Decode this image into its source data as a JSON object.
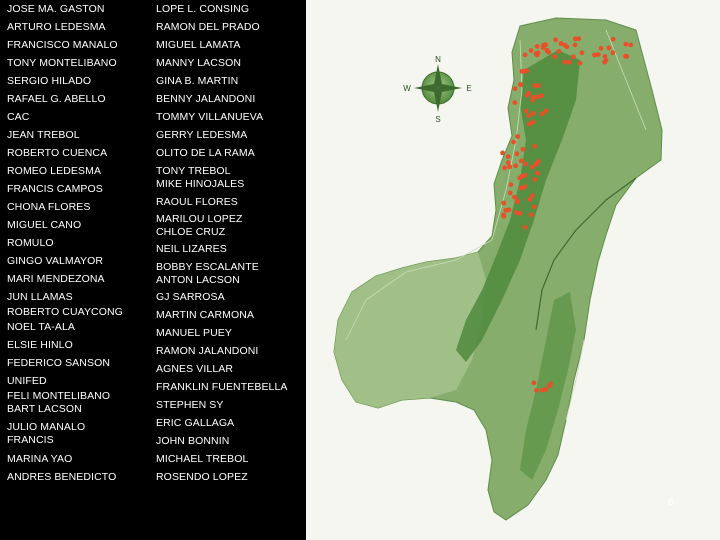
{
  "names_left": [
    "JOSE MA. GASTON",
    "ARTURO LEDESMA",
    "FRANCISCO MANALO",
    "TONY MONTELIBANO",
    "SERGIO HILADO",
    "RAFAEL G. ABELLO",
    "CAC",
    "JEAN TREBOL",
    "ROBERTO CUENCA",
    "ROMEO LEDESMA",
    "FRANCIS CAMPOS",
    "CHONA FLORES",
    "MIGUEL CANO",
    "ROMULO",
    "GINGO VALMAYOR",
    "MARI MENDEZONA",
    "JUN LLAMAS",
    "ROBERTO CUAYCONG",
    "NOEL TA-ALA",
    "ELSIE HINLO",
    "FEDERICO SANSON",
    "UNIFED",
    "FELI MONTELIBANO",
    "BART LACSON",
    "JULIO MANALO",
    "FRANCIS",
    "MARINA YAO",
    "ANDRES BENEDICTO"
  ],
  "names_right": [
    "LOPE L. CONSING",
    "RAMON DEL PRADO",
    "MIGUEL LAMATA",
    "MANNY LACSON",
    "GINA B. MARTIN",
    "BENNY JALANDONI",
    "TOMMY VILLANUEVA",
    "GERRY LEDESMA",
    "OLITO DE LA RAMA",
    "TONY TREBOL",
    "MIKE HINOJALES",
    "RAOUL FLORES",
    "MARILOU LOPEZ",
    "CHLOE CRUZ",
    "NEIL LIZARES",
    "BOBBY ESCALANTE",
    "ANTON LACSON",
    "GJ SARROSA",
    "MARTIN CARMONA",
    "MANUEL PUEY",
    "RAMON JALANDONI",
    "AGNES VILLAR",
    "FRANKLIN FUENTEBELLA",
    "STEPHEN SY",
    "ERIC GALLAGA",
    "JOHN BONNIN",
    "MICHAEL TREBOL",
    "ROSENDO LOPEZ"
  ],
  "map": {
    "compass_letters": [
      "N",
      "E",
      "S",
      "W"
    ],
    "land_color": "#7fa867",
    "land_dark_color": "#4f8a3c",
    "highlight_color": "#e8502a"
  },
  "page_number": "6"
}
